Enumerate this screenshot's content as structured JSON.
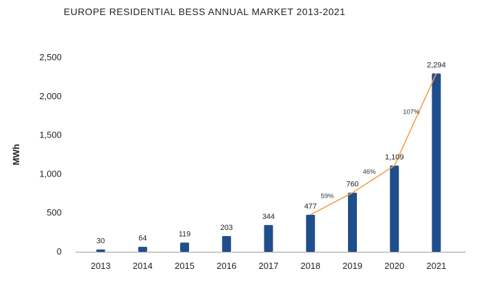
{
  "chart_data": {
    "type": "bar",
    "title": "EUROPE RESIDENTIAL BESS ANNUAL MARKET 2013-2021",
    "xlabel": "",
    "ylabel": "MWh",
    "ylim": [
      0,
      2500
    ],
    "yticks": [
      0,
      500,
      1000,
      1500,
      2000,
      2500
    ],
    "ytick_labels": [
      "0",
      "500",
      "1,000",
      "1,500",
      "2,000",
      "2,500"
    ],
    "categories": [
      "2013",
      "2014",
      "2015",
      "2016",
      "2017",
      "2018",
      "2019",
      "2020",
      "2021"
    ],
    "values": [
      30,
      64,
      119,
      203,
      344,
      477,
      760,
      1109,
      2294
    ],
    "value_labels": [
      "30",
      "64",
      "119",
      "203",
      "344",
      "477",
      "760",
      "1,109",
      "2,294"
    ],
    "trend_line": {
      "from_category": "2018",
      "to_category": "2021",
      "color": "#f0a04b"
    },
    "growth_annotations": [
      {
        "category": "2019",
        "label": "59%"
      },
      {
        "category": "2020",
        "label": "46%"
      },
      {
        "category": "2021",
        "label": "107%"
      }
    ],
    "grid": false,
    "legend": "none",
    "colors": {
      "bar": "#1f4e8c",
      "trend": "#f0a04b",
      "axis": "#999999"
    }
  }
}
